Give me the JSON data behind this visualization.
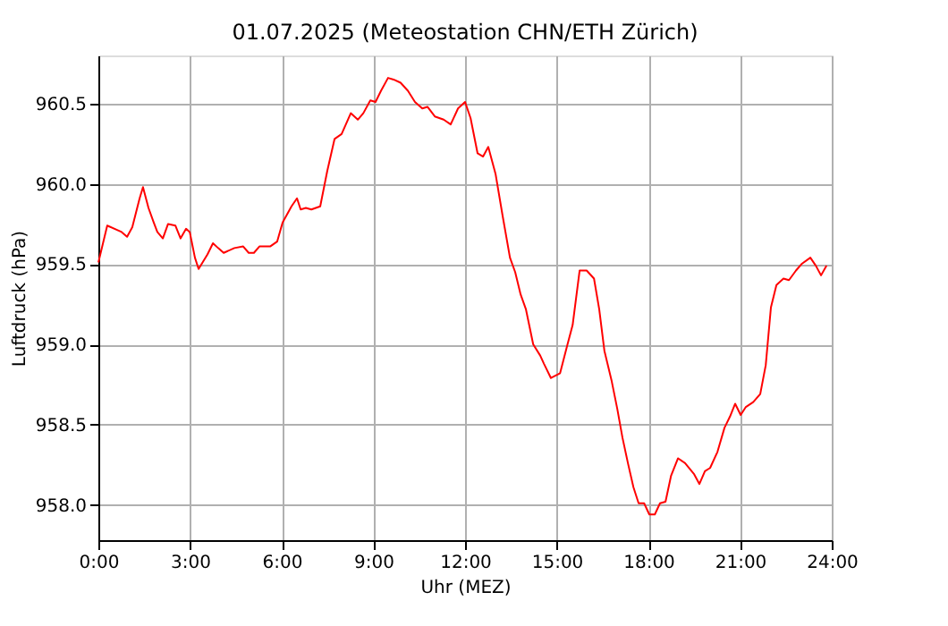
{
  "chart_data": {
    "type": "line",
    "title": "01.07.2025  (Meteostation CHN/ETH Zürich)",
    "xlabel": "Uhr (MEZ)",
    "ylabel": "Luftdruck (hPa)",
    "x": [
      0,
      0.29,
      0.76,
      0.94,
      1.11,
      1.35,
      1.46,
      1.64,
      1.81,
      1.93,
      2.11,
      2.28,
      2.52,
      2.69,
      2.87,
      2.99,
      3.16,
      3.28,
      3.57,
      3.75,
      3.92,
      4.1,
      4.45,
      4.74,
      4.92,
      5.09,
      5.27,
      5.62,
      5.85,
      6.03,
      6.32,
      6.5,
      6.62,
      6.79,
      6.97,
      7.26,
      7.49,
      7.73,
      7.96,
      8.26,
      8.49,
      8.67,
      8.9,
      9.07,
      9.25,
      9.48,
      9.66,
      9.89,
      10.13,
      10.36,
      10.6,
      10.77,
      11.01,
      11.3,
      11.53,
      11.77,
      12.0,
      12.18,
      12.41,
      12.59,
      12.76,
      13.0,
      13.23,
      13.47,
      13.64,
      13.82,
      13.99,
      14.23,
      14.46,
      14.58,
      14.81,
      15.11,
      15.34,
      15.52,
      15.75,
      15.98,
      16.22,
      16.39,
      16.56,
      16.8,
      16.98,
      17.15,
      17.33,
      17.51,
      17.68,
      17.86,
      18.03,
      18.21,
      18.38,
      18.56,
      18.74,
      18.97,
      19.2,
      19.5,
      19.67,
      19.85,
      20.02,
      20.26,
      20.49,
      20.67,
      20.84,
      21.02,
      21.19,
      21.43,
      21.66,
      21.84,
      22.01,
      22.19,
      22.42,
      22.6,
      22.83,
      23.01,
      23.3,
      23.48,
      23.65,
      23.83
    ],
    "series": [
      {
        "color": "#ff0000",
        "values": [
          959.51,
          959.74,
          959.7,
          959.67,
          959.73,
          959.91,
          959.98,
          959.85,
          959.76,
          959.7,
          959.66,
          959.75,
          959.74,
          959.66,
          959.72,
          959.7,
          959.54,
          959.47,
          959.56,
          959.63,
          959.6,
          959.57,
          959.6,
          959.61,
          959.57,
          959.57,
          959.61,
          959.61,
          959.64,
          959.76,
          959.86,
          959.91,
          959.84,
          959.85,
          959.84,
          959.86,
          960.08,
          960.28,
          960.31,
          960.44,
          960.4,
          960.44,
          960.52,
          960.51,
          960.58,
          960.66,
          960.65,
          960.63,
          960.58,
          960.51,
          960.47,
          960.48,
          960.42,
          960.4,
          960.37,
          960.47,
          960.51,
          960.41,
          960.19,
          960.17,
          960.23,
          960.06,
          959.8,
          959.54,
          959.45,
          959.31,
          959.22,
          959.0,
          958.93,
          958.88,
          958.79,
          958.82,
          958.99,
          959.12,
          959.46,
          959.46,
          959.41,
          959.22,
          958.96,
          958.77,
          958.6,
          958.42,
          958.26,
          958.11,
          958.01,
          958.01,
          957.94,
          957.94,
          958.01,
          958.02,
          958.18,
          958.29,
          958.26,
          958.19,
          958.13,
          958.21,
          958.23,
          958.33,
          958.48,
          958.55,
          958.63,
          958.56,
          958.61,
          958.64,
          958.69,
          958.87,
          959.23,
          959.37,
          959.41,
          959.4,
          959.46,
          959.5,
          959.54,
          959.49,
          959.43,
          959.49
        ]
      }
    ],
    "xlim": [
      0,
      24
    ],
    "ylim": [
      957.78,
      960.8
    ],
    "xticks": [
      {
        "value": 0,
        "label": "0:00"
      },
      {
        "value": 3,
        "label": "3:00"
      },
      {
        "value": 6,
        "label": "6:00"
      },
      {
        "value": 9,
        "label": "9:00"
      },
      {
        "value": 12,
        "label": "12:00"
      },
      {
        "value": 15,
        "label": "15:00"
      },
      {
        "value": 18,
        "label": "18:00"
      },
      {
        "value": 21,
        "label": "21:00"
      },
      {
        "value": 24,
        "label": "24:00"
      }
    ],
    "yticks": [
      {
        "value": 958,
        "label": "958.0"
      },
      {
        "value": 958.5,
        "label": "958.5"
      },
      {
        "value": 959,
        "label": "959.0"
      },
      {
        "value": 959.5,
        "label": "959.5"
      },
      {
        "value": 960,
        "label": "960.0"
      },
      {
        "value": 960.5,
        "label": "960.5"
      }
    ],
    "grid": true,
    "marker": "none",
    "line_style": "solid"
  }
}
